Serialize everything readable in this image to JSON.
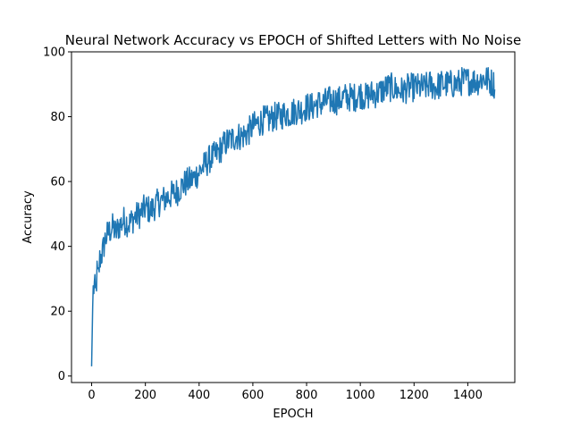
{
  "chart_data": {
    "type": "line",
    "title": "Neural Network Accuracy vs EPOCH of Shifted Letters with No Noise",
    "xlabel": "EPOCH",
    "ylabel": "Accuracy",
    "xlim": [
      -75,
      1575
    ],
    "ylim": [
      -2,
      100
    ],
    "x_ticks": [
      0,
      200,
      400,
      600,
      800,
      1000,
      1200,
      1400
    ],
    "y_ticks": [
      0,
      20,
      40,
      60,
      80,
      100
    ],
    "grid": false,
    "legend": "none",
    "series": [
      {
        "color": "#1f77b4",
        "x": [
          0,
          5,
          10,
          15,
          20,
          25,
          30,
          40,
          50,
          60,
          70,
          80,
          90,
          100,
          120,
          140,
          160,
          180,
          200,
          220,
          240,
          260,
          280,
          300,
          320,
          340,
          360,
          380,
          400,
          420,
          440,
          460,
          480,
          500,
          520,
          540,
          560,
          580,
          600,
          620,
          640,
          660,
          680,
          700,
          720,
          740,
          760,
          780,
          800,
          820,
          840,
          860,
          880,
          900,
          920,
          940,
          960,
          980,
          1000,
          1020,
          1040,
          1060,
          1080,
          1100,
          1120,
          1140,
          1160,
          1180,
          1200,
          1220,
          1240,
          1260,
          1280,
          1300,
          1320,
          1340,
          1360,
          1380,
          1400,
          1420,
          1440,
          1460,
          1480,
          1500
        ],
        "values": [
          3,
          26,
          28,
          25,
          32,
          30,
          36,
          38,
          42,
          44,
          45,
          46,
          44,
          46,
          48,
          47,
          49,
          50,
          52,
          51,
          53,
          54,
          55,
          56,
          57,
          59,
          60,
          61,
          63,
          65,
          67,
          68,
          70,
          72,
          73,
          74,
          74,
          75,
          77,
          78,
          79,
          79,
          80,
          80,
          81,
          81,
          82,
          82,
          83,
          83,
          84,
          84,
          85,
          85,
          85,
          86,
          86,
          86,
          87,
          86,
          87,
          87,
          88,
          89,
          89,
          88,
          88,
          89,
          89,
          89,
          89,
          90,
          89,
          90,
          90,
          90,
          90,
          91,
          91,
          91,
          91,
          92,
          91,
          90
        ],
        "noise_amplitude": 4.5
      }
    ]
  }
}
